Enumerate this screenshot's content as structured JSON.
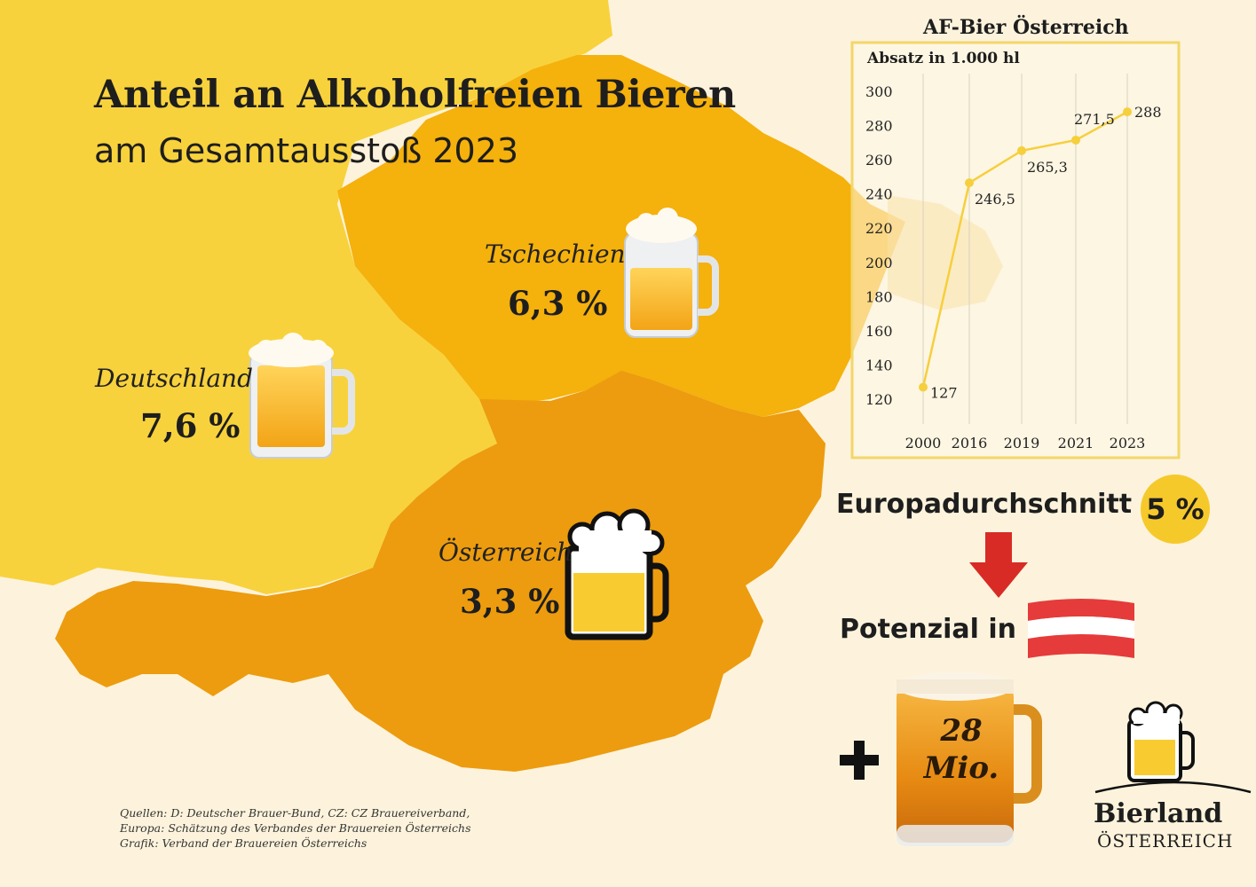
{
  "title": "Anteil an Alkoholfreien Bieren",
  "subtitle": "am Gesamtausstoß 2023",
  "countries": [
    {
      "name": "Deutschland",
      "share": "7,6 %"
    },
    {
      "name": "Tschechien",
      "share": "6,3 %"
    },
    {
      "name": "Österreich",
      "share": "3,3 %"
    }
  ],
  "europe_average": {
    "label": "Europadurchschnitt",
    "value": "5 %"
  },
  "potential": {
    "label": "Potenzial in",
    "plus": "+",
    "amount_line1": "28",
    "amount_line2": "Mio."
  },
  "sources": [
    "Quellen: D: Deutscher Brauer-Bund, CZ: CZ Brauereiverband,",
    "Europa: Schätzung des Verbandes der Brauereien Österreichs",
    "Grafik: Verband der Brauereien Österreichs"
  ],
  "brand": {
    "name": "Bierland",
    "sub": "ÖSTERREICH"
  },
  "colors": {
    "background": "#fdf3dc",
    "germany": "#f8d23c",
    "czech": "#f5b10c",
    "austria": "#ec9c0e",
    "chart_line": "#f6cf3c",
    "badge": "#f6c92b",
    "arrow": "#d82b25",
    "flag_red": "#e63b3b"
  },
  "chart_data": {
    "type": "line",
    "title": "AF-Bier Österreich",
    "ylabel": "Absatz in 1.000 hl",
    "categories": [
      "2000",
      "2016",
      "2019",
      "2021",
      "2023"
    ],
    "values": [
      127,
      246.5,
      265.3,
      271.5,
      288
    ],
    "value_labels": [
      "127",
      "246,5",
      "265,3",
      "271,5",
      "288"
    ],
    "ylim": [
      120,
      300
    ],
    "yticks": [
      120,
      140,
      160,
      180,
      200,
      220,
      240,
      260,
      280,
      300
    ],
    "grid": "vertical"
  }
}
